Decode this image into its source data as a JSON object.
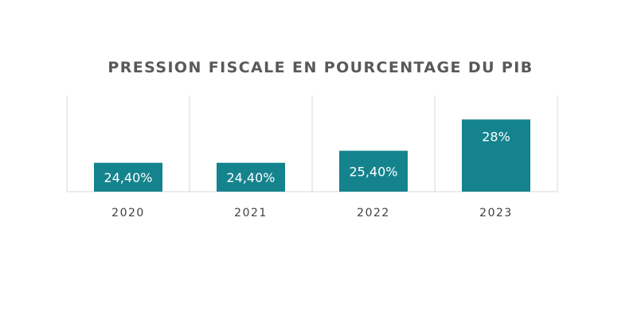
{
  "chart_data": {
    "type": "bar",
    "title": "PRESSION FISCALE EN POURCENTAGE DU PIB",
    "categories": [
      "2020",
      "2021",
      "2022",
      "2023"
    ],
    "values": [
      24.4,
      24.4,
      25.4,
      28
    ],
    "data_labels": [
      "24,40%",
      "24,40%",
      "25,40%",
      "28%"
    ],
    "xlabel": "",
    "ylabel": "",
    "ylim": [
      22,
      30
    ],
    "grid": "vertical category separators",
    "legend": "none",
    "colors": {
      "bar": "#14838D",
      "grid": "#D9D9D9",
      "title": "#595959",
      "tick": "#404040"
    }
  }
}
